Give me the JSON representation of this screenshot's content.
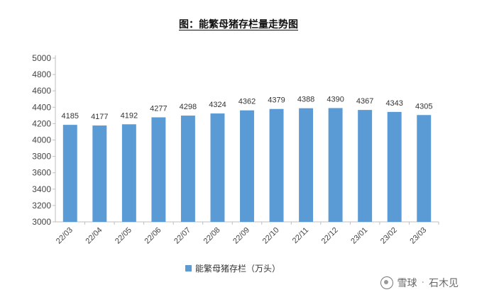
{
  "chart_data": {
    "type": "bar",
    "title": "图：能繁母猪存栏量走势图",
    "categories": [
      "22/03",
      "22/04",
      "22/05",
      "22/06",
      "22/07",
      "22/08",
      "22/09",
      "22/10",
      "22/11",
      "22/12",
      "23/01",
      "23/02",
      "23/03"
    ],
    "series": [
      {
        "name": "能繁母猪存栏（万头）",
        "values": [
          4185,
          4177,
          4192,
          4277,
          4298,
          4324,
          4362,
          4379,
          4388,
          4390,
          4367,
          4343,
          4305
        ]
      }
    ],
    "ylim": [
      3000,
      5000
    ],
    "yticks": [
      3000,
      3200,
      3400,
      3600,
      3800,
      4000,
      4200,
      4400,
      4600,
      4800,
      5000
    ],
    "grid": false,
    "legend": "bottom-center",
    "bar_color": "#5B9BD5"
  },
  "watermark": {
    "icon": "snowball-icon",
    "brand": "雪球",
    "author": "石木见"
  }
}
